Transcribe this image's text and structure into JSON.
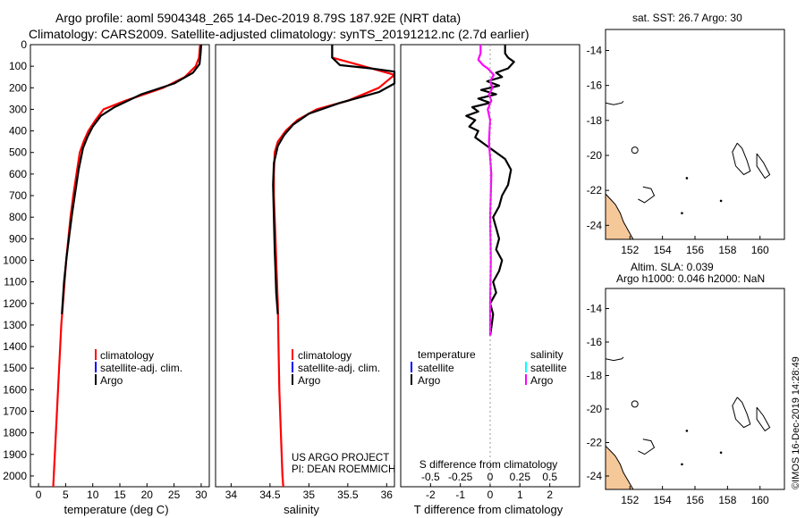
{
  "header": {
    "line1": "Argo profile: aoml 5904348_265 14-Dec-2019 8.79S 187.92E (NRT data)",
    "line2": "Climatology: CARS2009. Satellite-adjusted climatology: synTS_20191212.nc (2.7d earlier)"
  },
  "footer": {
    "project_line1": "US ARGO PROJECT",
    "project_line2": "PI: DEAN ROEMMICH",
    "credit": "©IMOS 16-Dec-2019 14:28:49"
  },
  "colors": {
    "climatology": "#ff0000",
    "satellite": "#0000ff",
    "argo": "#000000",
    "argo_salinity_diff": "#ff00ff",
    "satellite_salinity": "#00ffff",
    "land": "#f5c89a"
  },
  "chart_data": [
    {
      "type": "line",
      "name": "temperature-panel",
      "xlabel": "temperature (deg C)",
      "ylim": [
        2050,
        0
      ],
      "xlim": [
        -1.5,
        31.5
      ],
      "xticks": [
        "0",
        "5",
        "10",
        "15",
        "20",
        "25",
        "30"
      ],
      "yticks": [
        "0",
        "100",
        "200",
        "300",
        "400",
        "500",
        "600",
        "700",
        "800",
        "900",
        "1000",
        "1100",
        "1200",
        "1300",
        "1400",
        "1500",
        "1600",
        "1700",
        "1800",
        "1900",
        "2000"
      ],
      "legend": [
        "climatology",
        "satellite-adj. clim.",
        "Argo"
      ],
      "series": [
        {
          "name": "climatology",
          "color": "#ff0000",
          "x": [
            29.8,
            29.6,
            29.0,
            27.0,
            23.0,
            16.0,
            12.0,
            10.5,
            9.2,
            8.3,
            7.6,
            7.0,
            6.4,
            5.9,
            5.5,
            5.1,
            4.8,
            4.5,
            4.2,
            4.0,
            3.8,
            3.6,
            3.4,
            3.2,
            3.0,
            2.8,
            2.7
          ],
          "y": [
            0,
            60,
            100,
            150,
            200,
            260,
            300,
            350,
            400,
            450,
            500,
            600,
            700,
            800,
            900,
            1000,
            1100,
            1200,
            1300,
            1400,
            1500,
            1600,
            1700,
            1800,
            1900,
            2000,
            2050
          ]
        },
        {
          "name": "Argo",
          "color": "#000000",
          "x": [
            30.0,
            29.9,
            29.7,
            28.5,
            25.0,
            19.0,
            14.0,
            11.5,
            10.0,
            9.0,
            8.2,
            7.4,
            6.8,
            6.2,
            5.7,
            5.2,
            4.7,
            4.3
          ],
          "y": [
            0,
            40,
            90,
            130,
            180,
            230,
            290,
            330,
            380,
            430,
            480,
            580,
            680,
            780,
            880,
            980,
            1100,
            1250
          ]
        }
      ]
    },
    {
      "type": "line",
      "name": "salinity-panel",
      "xlabel": "salinity",
      "ylim": [
        2050,
        0
      ],
      "xlim": [
        33.8,
        36.1
      ],
      "xticks": [
        "34",
        "34.5",
        "35",
        "35.5",
        "36"
      ],
      "legend": [
        "climatology",
        "satellite-adj. clim.",
        "Argo"
      ],
      "series": [
        {
          "name": "climatology",
          "color": "#ff0000",
          "x": [
            35.3,
            35.3,
            35.7,
            36.1,
            35.9,
            35.5,
            35.1,
            34.85,
            34.7,
            34.6,
            34.56,
            34.55,
            34.55,
            34.56,
            34.57,
            34.58,
            34.6,
            34.61,
            34.62,
            34.64,
            34.65,
            34.66,
            34.67
          ],
          "y": [
            0,
            60,
            100,
            140,
            200,
            260,
            300,
            350,
            400,
            450,
            500,
            600,
            700,
            800,
            900,
            1000,
            1200,
            1400,
            1600,
            1800,
            1900,
            2000,
            2050
          ]
        },
        {
          "name": "Argo",
          "color": "#000000",
          "x": [
            35.3,
            35.3,
            35.4,
            35.8,
            36.1,
            36.1,
            35.9,
            35.4,
            35.0,
            34.8,
            34.68,
            34.6,
            34.55,
            34.54,
            34.55,
            34.56,
            34.57,
            34.58,
            34.6
          ],
          "y": [
            0,
            60,
            95,
            110,
            125,
            180,
            220,
            270,
            320,
            370,
            420,
            470,
            550,
            650,
            800,
            950,
            1050,
            1150,
            1250
          ]
        }
      ]
    },
    {
      "type": "line",
      "name": "difference-panel",
      "xlabel": "T difference from climatology",
      "xlabel2": "S difference from climatology",
      "ylim": [
        2050,
        0
      ],
      "xlim": [
        -3,
        3
      ],
      "xticks": [
        "-2",
        "-1",
        "0",
        "1",
        "2"
      ],
      "xticks2": [
        "-0.5",
        "-0.25",
        "0",
        "0.25",
        "0.5"
      ],
      "legend_temperature": {
        "title": "temperature",
        "items": [
          "satellite",
          "Argo"
        ]
      },
      "legend_salinity": {
        "title": "salinity",
        "items": [
          "satellite",
          "Argo"
        ]
      },
      "series": [
        {
          "name": "temperature Argo",
          "color": "#000000",
          "x": [
            0.5,
            0.5,
            0.6,
            0.8,
            0.6,
            0.2,
            0.4,
            -0.1,
            0.3,
            -0.3,
            0.2,
            -0.4,
            0.0,
            -0.6,
            -0.4,
            -0.8,
            -0.5,
            -0.7,
            -0.4,
            -0.5,
            -0.2,
            0.1,
            0.5,
            0.7,
            0.6,
            0.4,
            0.3,
            0.1,
            0.2,
            0.3,
            0.2,
            0.4,
            0.3,
            0.1,
            0.2,
            0.0,
            0.1,
            0.05,
            0.0
          ],
          "y": [
            0,
            40,
            60,
            80,
            110,
            130,
            150,
            170,
            190,
            210,
            230,
            250,
            270,
            290,
            310,
            330,
            350,
            380,
            400,
            430,
            460,
            490,
            530,
            580,
            650,
            700,
            750,
            800,
            850,
            900,
            950,
            1000,
            1050,
            1100,
            1150,
            1200,
            1250,
            1300,
            1350
          ]
        },
        {
          "name": "salinity Argo",
          "color": "#ff00ff",
          "x": [
            -0.08,
            -0.08,
            -0.1,
            -0.06,
            -0.02,
            0.03,
            0.0,
            0.02,
            -0.01,
            0.01,
            -0.02,
            0.0,
            -0.01,
            0.01,
            0.0,
            0.005,
            0.0,
            0.0
          ],
          "y": [
            0,
            40,
            70,
            95,
            110,
            140,
            170,
            200,
            230,
            260,
            300,
            350,
            450,
            600,
            800,
            1000,
            1200,
            1350
          ]
        }
      ]
    },
    {
      "type": "map",
      "name": "sst-map",
      "title": "sat. SST: 26.7  Argo: 30",
      "xticks": [
        "152",
        "154",
        "156",
        "158",
        "160"
      ],
      "yticks": [
        "-14",
        "-16",
        "-18",
        "-20",
        "-22",
        "-24"
      ],
      "xlim": [
        150.5,
        161.5
      ],
      "ylim": [
        -24.8,
        -12.8
      ]
    },
    {
      "type": "map",
      "name": "sla-map",
      "title": "Altim. SLA: 0.039",
      "subtitle": "Argo h1000: 0.046  h2000: NaN",
      "xticks": [
        "152",
        "154",
        "156",
        "158",
        "160"
      ],
      "yticks": [
        "-14",
        "-16",
        "-18",
        "-20",
        "-22",
        "-24"
      ],
      "xlim": [
        150.5,
        161.5
      ],
      "ylim": [
        -24.8,
        -12.8
      ]
    }
  ]
}
